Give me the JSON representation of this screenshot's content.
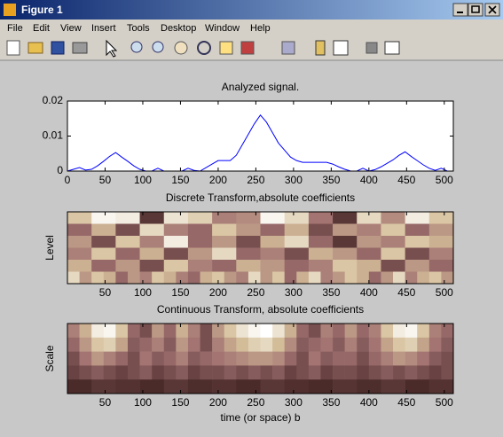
{
  "window": {
    "title": "Figure 1",
    "menu": [
      "File",
      "Edit",
      "View",
      "Insert",
      "Tools",
      "Desktop",
      "Window",
      "Help"
    ]
  },
  "chart_data": [
    {
      "type": "line",
      "title": "Analyzed signal.",
      "color": "#0000ff",
      "x": [
        0,
        8,
        16,
        24,
        32,
        40,
        48,
        56,
        64,
        72,
        80,
        88,
        96,
        104,
        112,
        120,
        128,
        136,
        144,
        152,
        160,
        168,
        176,
        184,
        192,
        200,
        208,
        216,
        224,
        232,
        240,
        248,
        256,
        264,
        272,
        280,
        288,
        296,
        304,
        312,
        320,
        328,
        336,
        344,
        352,
        360,
        368,
        376,
        384,
        392,
        400,
        408,
        416,
        424,
        432,
        440,
        448,
        456,
        464,
        472,
        480,
        488,
        496,
        504,
        512
      ],
      "values": [
        0,
        0.0005,
        0.001,
        0.0003,
        0.0005,
        0.0015,
        0.0028,
        0.0042,
        0.0053,
        0.004,
        0.0028,
        0.0015,
        0.0005,
        0,
        0,
        0.0008,
        0,
        0,
        0,
        0,
        0.0008,
        0.0002,
        0,
        0.001,
        0.002,
        0.003,
        0.003,
        0.003,
        0.0045,
        0.0075,
        0.0105,
        0.0135,
        0.016,
        0.014,
        0.011,
        0.008,
        0.006,
        0.004,
        0.003,
        0.0025,
        0.0025,
        0.0025,
        0.0025,
        0.0025,
        0.002,
        0.0012,
        0.0005,
        0,
        0,
        0.0008,
        0,
        0.0004,
        0.0012,
        0.0022,
        0.0032,
        0.0045,
        0.0055,
        0.0042,
        0.003,
        0.0018,
        0.0008,
        0.0002,
        0.0008,
        0,
        0
      ],
      "xlim": [
        0,
        512
      ],
      "xticks": [
        0,
        50,
        100,
        150,
        200,
        250,
        300,
        350,
        400,
        450,
        500
      ],
      "ylim": [
        0,
        0.02
      ],
      "yticks": [
        0,
        0.01,
        0.02
      ]
    },
    {
      "type": "heatmap",
      "title": "Discrete Transform,absolute coefficients",
      "ylabel": "Level",
      "xlim": [
        0,
        512
      ],
      "xticks": [
        50,
        100,
        150,
        200,
        250,
        300,
        350,
        400,
        450,
        500
      ],
      "clim": [
        0,
        1
      ],
      "z": [
        [
          0.7,
          0.95,
          0.9,
          0.1,
          0.85,
          0.75,
          0.4,
          0.45,
          0.95,
          0.8,
          0.35,
          0.1,
          0.8,
          0.45,
          0.9,
          0.7
        ],
        [
          0.3,
          0.6,
          0.2,
          0.8,
          0.4,
          0.3,
          0.7,
          0.5,
          0.3,
          0.6,
          0.2,
          0.5,
          0.4,
          0.7,
          0.3,
          0.5
        ],
        [
          0.5,
          0.2,
          0.7,
          0.4,
          0.9,
          0.3,
          0.5,
          0.2,
          0.6,
          0.8,
          0.3,
          0.1,
          0.5,
          0.4,
          0.7,
          0.6
        ],
        [
          0.4,
          0.7,
          0.3,
          0.6,
          0.2,
          0.5,
          0.8,
          0.3,
          0.4,
          0.2,
          0.6,
          0.5,
          0.3,
          0.7,
          0.2,
          0.4
        ],
        [
          0.6,
          0.3,
          0.5,
          0.2,
          0.7,
          0.4,
          0.3,
          0.6,
          0.5,
          0.3,
          0.4,
          0.7,
          0.6,
          0.2,
          0.5,
          0.3
        ],
        [
          0.8,
          0.5,
          0.7,
          0.6,
          0.3,
          0.5,
          0.4,
          0.7,
          0.6,
          0.4,
          0.3,
          0.6,
          0.7,
          0.5,
          0.4,
          0.8,
          0.5,
          0.7,
          0.3,
          0.6,
          0.8,
          0.4,
          0.5,
          0.7,
          0.6,
          0.3,
          0.5,
          0.8,
          0.4,
          0.6,
          0.7,
          0.5
        ]
      ]
    },
    {
      "type": "heatmap",
      "title": "Continuous Transform, absolute coefficients",
      "ylabel": "Scale",
      "xlabel": "time (or space) b",
      "xlim": [
        0,
        512
      ],
      "xticks": [
        50,
        100,
        150,
        200,
        250,
        300,
        350,
        400,
        450,
        500
      ],
      "clim": [
        0,
        1
      ],
      "z": [
        [
          0.4,
          0.6,
          0.9,
          0.95,
          0.7,
          0.3,
          0.2,
          0.5,
          0.3,
          0.6,
          0.4,
          0.2,
          0.5,
          0.7,
          0.85,
          0.95,
          1,
          0.85,
          0.6,
          0.3,
          0.2,
          0.4,
          0.3,
          0.5,
          0.3,
          0.4,
          0.7,
          0.9,
          0.95,
          0.7,
          0.4,
          0.3
        ],
        [
          0.3,
          0.5,
          0.7,
          0.75,
          0.55,
          0.25,
          0.3,
          0.4,
          0.25,
          0.5,
          0.35,
          0.2,
          0.4,
          0.55,
          0.65,
          0.75,
          0.8,
          0.65,
          0.45,
          0.25,
          0.3,
          0.35,
          0.25,
          0.4,
          0.25,
          0.35,
          0.55,
          0.7,
          0.75,
          0.55,
          0.35,
          0.25
        ],
        [
          0.2,
          0.35,
          0.5,
          0.4,
          0.3,
          0.2,
          0.35,
          0.25,
          0.3,
          0.4,
          0.25,
          0.3,
          0.35,
          0.4,
          0.45,
          0.5,
          0.5,
          0.45,
          0.3,
          0.2,
          0.35,
          0.25,
          0.3,
          0.3,
          0.2,
          0.3,
          0.4,
          0.5,
          0.45,
          0.35,
          0.25,
          0.2
        ],
        [
          0.15,
          0.2,
          0.25,
          0.2,
          0.15,
          0.2,
          0.25,
          0.15,
          0.2,
          0.25,
          0.15,
          0.2,
          0.2,
          0.25,
          0.2,
          0.25,
          0.2,
          0.25,
          0.15,
          0.2,
          0.25,
          0.15,
          0.2,
          0.2,
          0.15,
          0.2,
          0.25,
          0.2,
          0.25,
          0.2,
          0.15,
          0.2
        ],
        [
          0.05,
          0.1,
          0.08,
          0.05,
          0.1,
          0.06,
          0.08,
          0.05,
          0.1,
          0.07,
          0.05,
          0.09,
          0.06,
          0.1,
          0.05,
          0.08
        ]
      ]
    }
  ]
}
